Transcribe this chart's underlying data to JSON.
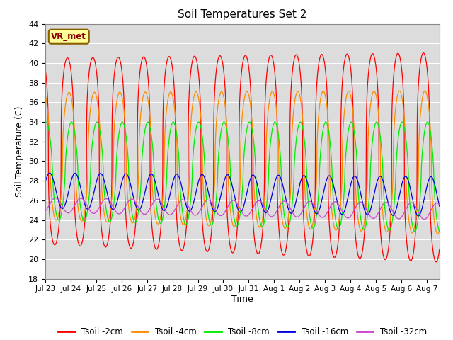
{
  "title": "Soil Temperatures Set 2",
  "xlabel": "Time",
  "ylabel": "Soil Temperature (C)",
  "ylim": [
    18,
    44
  ],
  "yticks": [
    18,
    20,
    22,
    24,
    26,
    28,
    30,
    32,
    34,
    36,
    38,
    40,
    42,
    44
  ],
  "bg_color": "#dcdcdc",
  "grid_color": "#ffffff",
  "series": [
    {
      "label": "Tsoil -2cm",
      "color": "#ff0000",
      "amplitude": 9.5,
      "phase": 0.62,
      "mean": 31.0,
      "sharpness": 3.0
    },
    {
      "label": "Tsoil -4cm",
      "color": "#ff8c00",
      "amplitude": 6.5,
      "phase": 0.68,
      "mean": 30.5,
      "sharpness": 2.0
    },
    {
      "label": "Tsoil -8cm",
      "color": "#00ee00",
      "amplitude": 5.0,
      "phase": 0.78,
      "mean": 29.0,
      "sharpness": 1.5
    },
    {
      "label": "Tsoil -16cm",
      "color": "#0000dd",
      "amplitude": 1.8,
      "phase": 0.92,
      "mean": 27.0,
      "sharpness": 1.0
    },
    {
      "label": "Tsoil -32cm",
      "color": "#cc44cc",
      "amplitude": 0.75,
      "phase": 1.15,
      "mean": 25.5,
      "sharpness": 1.0
    }
  ],
  "annotation_text": "VR_met",
  "n_days": 15.5,
  "points_per_day": 240,
  "mean_drift": -0.04,
  "amp_growth": 0.008
}
